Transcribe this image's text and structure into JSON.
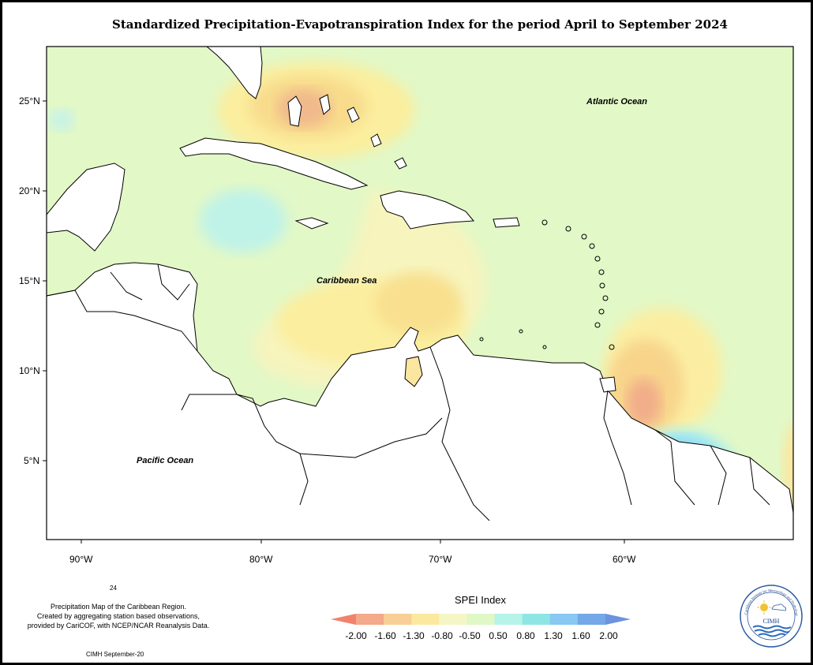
{
  "title": "Standardized Precipitation-Evapotranspiration Index for the period April to September 2024",
  "map": {
    "lat_labels": [
      "25°N",
      "20°N",
      "15°N",
      "10°N",
      "5°N"
    ],
    "lon_labels": [
      "90°W",
      "80°W",
      "70°W",
      "60°W"
    ],
    "ocean_labels": {
      "atlantic": "Atlantic Ocean",
      "caribbean": "Caribbean Sea",
      "pacific": "Pacific Ocean"
    }
  },
  "footer": {
    "page_number": "24",
    "note_line1": "Precipitation Map of the Caribbean Region.",
    "note_line2": "Created by aggregating station based observations,",
    "note_line3": "provided by CariCOF, with NCEP/NCAR Reanalysis Data.",
    "credit": "CIMH September-20"
  },
  "legend": {
    "title": "SPEI Index",
    "ticks": [
      "-2.00",
      "-1.60",
      "-1.30",
      "-0.80",
      "-0.50",
      "0.50",
      "0.80",
      "1.30",
      "1.60",
      "2.00"
    ],
    "colors": [
      "#f0826e",
      "#f3a98a",
      "#f8cf96",
      "#fbe9a0",
      "#f5f6c6",
      "#dff8c6",
      "#b6f3e8",
      "#8ee6e4",
      "#88c8f2",
      "#74a8e8",
      "#6b93de"
    ]
  },
  "logo": {
    "text": "CIMH",
    "ring_text": "Caribbean Institute for Meteorology and Hydrology"
  }
}
